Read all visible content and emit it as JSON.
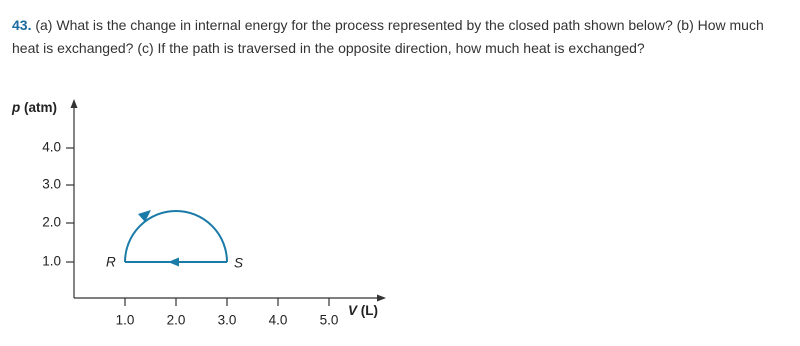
{
  "problem": {
    "number": "43.",
    "text": "(a) What is the change in internal energy for the process represented by the closed path shown below? (b) How much heat is exchanged? (c) If the path is traversed in the opposite direction, how much heat is exchanged?"
  },
  "figure": {
    "y_axis": {
      "symbol": "p",
      "unit": "(atm)",
      "ticks": [
        "4.0",
        "3.0",
        "2.0",
        "1.0"
      ]
    },
    "x_axis": {
      "symbol": "V",
      "unit": "(L)",
      "ticks": [
        "1.0",
        "2.0",
        "3.0",
        "4.0",
        "5.0"
      ]
    },
    "points": [
      "R",
      "S"
    ]
  }
}
